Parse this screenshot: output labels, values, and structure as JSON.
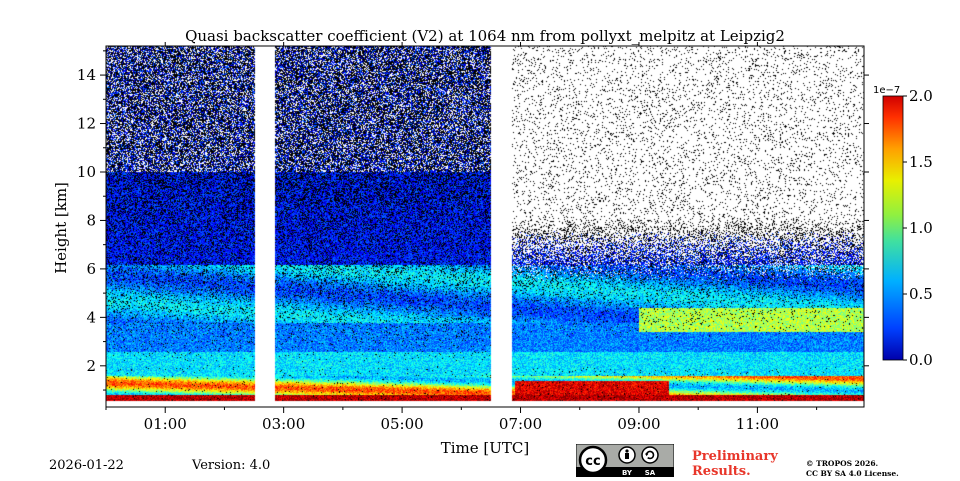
{
  "chart_data": {
    "type": "heatmap",
    "title": "Quasi backscatter coefficient (V2) at 1064 nm from pollyxt_melpitz at Leipzig2",
    "xlabel": "Time [UTC]",
    "ylabel": "Height [km]",
    "x_range_hours": [
      0.0,
      12.8
    ],
    "ylim": [
      0.3,
      15.2
    ],
    "xticks": [
      {
        "value": 1,
        "label": "01:00"
      },
      {
        "value": 3,
        "label": "03:00"
      },
      {
        "value": 5,
        "label": "05:00"
      },
      {
        "value": 7,
        "label": "07:00"
      },
      {
        "value": 9,
        "label": "09:00"
      },
      {
        "value": 11,
        "label": "11:00"
      }
    ],
    "yticks": [
      {
        "value": 2,
        "label": "2"
      },
      {
        "value": 4,
        "label": "4"
      },
      {
        "value": 6,
        "label": "6"
      },
      {
        "value": 8,
        "label": "8"
      },
      {
        "value": 10,
        "label": "10"
      },
      {
        "value": 12,
        "label": "12"
      },
      {
        "value": 14,
        "label": "14"
      }
    ],
    "data_gaps_hours": [
      [
        2.5,
        2.85
      ],
      [
        6.5,
        6.85
      ]
    ],
    "colorbar": {
      "label_exponent": "1e−7",
      "min": 0.0,
      "max": 2.0,
      "ticks": [
        {
          "value": 0.0,
          "label": "0.0"
        },
        {
          "value": 0.5,
          "label": "0.5"
        },
        {
          "value": 1.0,
          "label": "1.0"
        },
        {
          "value": 1.5,
          "label": "1.5"
        },
        {
          "value": 2.0,
          "label": "2.0"
        }
      ],
      "colormap": "jet"
    }
  },
  "footer": {
    "date": "2026-01-22",
    "version": "Version: 4.0",
    "license_badge": {
      "cc": "cc",
      "by": "BY",
      "sa": "SA"
    },
    "preliminary_line1": "Preliminary",
    "preliminary_line2": "Results.",
    "copyright_line1": "© TROPOS 2026.",
    "copyright_line2": "CC BY SA 4.0 License."
  },
  "colors": {
    "preliminary_text": "#e8362a",
    "badge_bg": "#a9aba7",
    "badge_circle": "#ffffff"
  }
}
